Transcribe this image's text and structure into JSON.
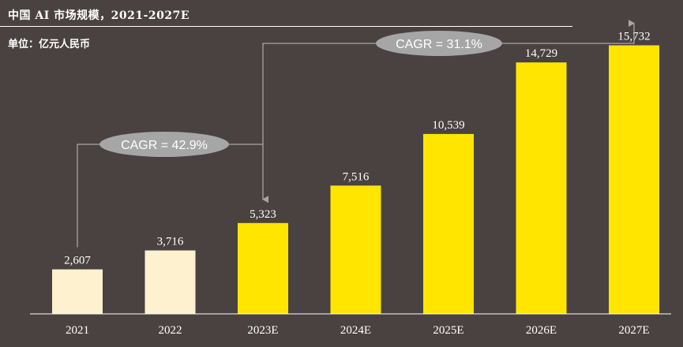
{
  "header": {
    "title": "中国 AI 市场规模，2021-2027E",
    "unit": "单位：亿元人民币"
  },
  "chart_data": {
    "type": "bar",
    "title": "中国 AI 市场规模，2021-2027E",
    "ylabel": "单位：亿元人民币",
    "xlabel": "",
    "ylim": [
      0,
      17000
    ],
    "categories": [
      "2021",
      "2022",
      "2023E",
      "2024E",
      "2025E",
      "2026E",
      "2027E"
    ],
    "values": [
      2607,
      3716,
      5323,
      7516,
      10539,
      14729,
      15732
    ],
    "value_labels": [
      "2,607",
      "3,716",
      "5,323",
      "7,516",
      "10,539",
      "14,729",
      "15,732"
    ],
    "bar_colors": [
      "#FDF1CF",
      "#FDF1CF",
      "#FFE500",
      "#FFE500",
      "#FFE500",
      "#FFE500",
      "#FFE500"
    ],
    "grid": false,
    "annotations": [
      {
        "text": "CAGR = 42.9%",
        "from": "2021",
        "to": "2023E"
      },
      {
        "text": "CAGR = 31.1%",
        "from": "2023E",
        "to": "2027E"
      }
    ]
  }
}
